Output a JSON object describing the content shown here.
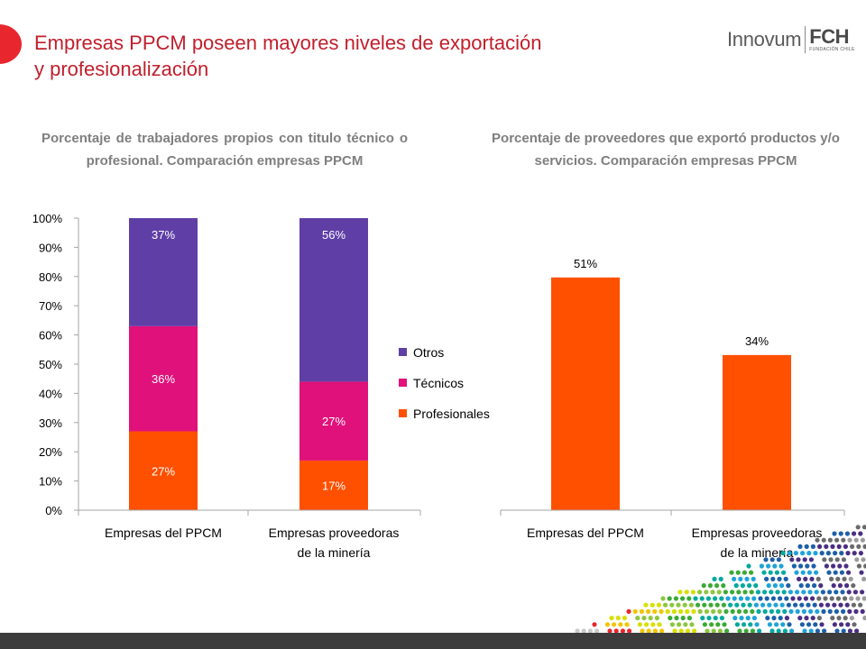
{
  "slide": {
    "title_line1": "Empresas PPCM poseen mayores niveles de exportación",
    "title_line2": "y profesionalización"
  },
  "logo": {
    "innovum": "Innovum",
    "fch": "FCH",
    "fch_sub": "FUNDACIÓN CHILE"
  },
  "colors": {
    "title": "#c01f2c",
    "accent": "#e8262e",
    "profesionales": "#ff5000",
    "tecnicos": "#e0117a",
    "otros": "#5f3fa6",
    "axis_text": "#000000",
    "chart_title": "#7f7f7f"
  },
  "chart_data": [
    {
      "type": "bar",
      "stacked": true,
      "title": "Porcentaje de trabajadores propios con titulo técnico o profesional. Comparación empresas PPCM",
      "categories": [
        [
          "Empresas del PPCM"
        ],
        [
          "Empresas proveedoras",
          "de la minería"
        ]
      ],
      "series": [
        {
          "name": "Profesionales",
          "values": [
            27,
            17
          ],
          "labels": [
            "27%",
            "17%"
          ]
        },
        {
          "name": "Técnicos",
          "values": [
            36,
            27
          ],
          "labels": [
            "36%",
            "27%"
          ]
        },
        {
          "name": "Otros",
          "values": [
            37,
            56
          ],
          "labels": [
            "37%",
            "56%"
          ]
        }
      ],
      "ylim": [
        0,
        100
      ],
      "yticks": [
        "0%",
        "10%",
        "20%",
        "30%",
        "40%",
        "50%",
        "60%",
        "70%",
        "80%",
        "90%",
        "100%"
      ],
      "legend": "right",
      "legend_order": [
        "Otros",
        "Técnicos",
        "Profesionales"
      ],
      "grid": false
    },
    {
      "type": "bar",
      "title": "Porcentaje de proveedores que exportó productos y/o servicios. Comparación empresas PPCM",
      "categories": [
        [
          "Empresas del PPCM"
        ],
        [
          "Empresas proveedoras",
          "de la minería"
        ]
      ],
      "values": [
        51,
        34
      ],
      "labels": [
        "51%",
        "34%"
      ],
      "ylim": [
        0,
        64
      ],
      "y_axis_shown": false,
      "grid": false
    }
  ]
}
